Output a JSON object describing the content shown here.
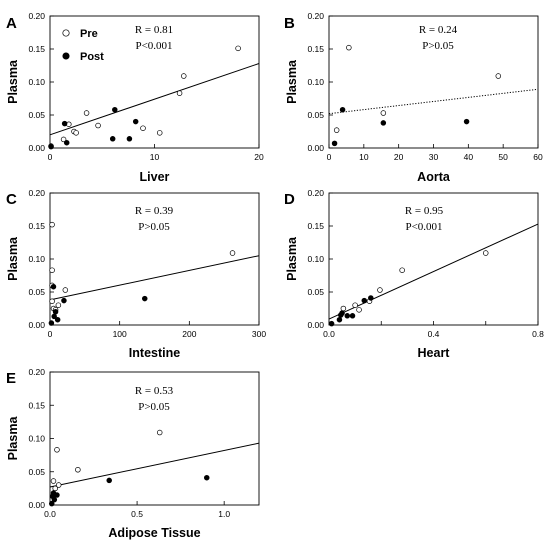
{
  "legend": {
    "panel": "A",
    "entries": [
      {
        "label": "Pre",
        "marker": "open-circle"
      },
      {
        "label": "Post",
        "marker": "filled-circle"
      }
    ]
  },
  "chart_data": [
    {
      "panel": "A",
      "type": "scatter",
      "xlabel": "Liver",
      "ylabel": "Plasma",
      "xlim": [
        0,
        20
      ],
      "ylim": [
        0,
        0.2
      ],
      "xticks": [
        0,
        10,
        20
      ],
      "xtick_labels": [
        "0",
        "10",
        "20"
      ],
      "yticks": [
        0,
        0.05,
        0.1,
        0.15,
        0.2
      ],
      "ytick_labels": [
        "0.00",
        "0.05",
        "0.10",
        "0.15",
        "0.20"
      ],
      "stats": {
        "r": "R = 0.81",
        "p": "P<0.001"
      },
      "fit": {
        "style": "solid",
        "points": [
          [
            0,
            0.02
          ],
          [
            20,
            0.128
          ]
        ]
      },
      "series": [
        {
          "name": "Pre",
          "marker": "open",
          "points": [
            [
              0.1,
              0.003
            ],
            [
              1.3,
              0.013
            ],
            [
              2.3,
              0.025
            ],
            [
              2.5,
              0.023
            ],
            [
              3.5,
              0.053
            ],
            [
              4.6,
              0.034
            ],
            [
              8.9,
              0.03
            ],
            [
              10.5,
              0.023
            ],
            [
              12.4,
              0.083
            ],
            [
              12.8,
              0.109
            ],
            [
              18,
              0.151
            ],
            [
              1.8,
              0.036
            ]
          ]
        },
        {
          "name": "Post",
          "marker": "filled",
          "points": [
            [
              0.1,
              0.002
            ],
            [
              1.4,
              0.037
            ],
            [
              1.6,
              0.008
            ],
            [
              6.0,
              0.014
            ],
            [
              6.2,
              0.058
            ],
            [
              7.6,
              0.014
            ],
            [
              8.2,
              0.04
            ]
          ]
        }
      ]
    },
    {
      "panel": "B",
      "type": "scatter",
      "xlabel": "Aorta",
      "ylabel": "Plasma",
      "xlim": [
        0,
        60
      ],
      "ylim": [
        0,
        0.2
      ],
      "xticks": [
        0,
        10,
        20,
        30,
        40,
        50,
        60
      ],
      "xtick_labels": [
        "0",
        "10",
        "20",
        "30",
        "40",
        "50",
        "60"
      ],
      "yticks": [
        0,
        0.05,
        0.1,
        0.15,
        0.2
      ],
      "ytick_labels": [
        "0.00",
        "0.05",
        "0.10",
        "0.15",
        "0.20"
      ],
      "stats": {
        "r": "R = 0.24",
        "p": "P>0.05"
      },
      "fit": {
        "style": "dotted",
        "points": [
          [
            0,
            0.052
          ],
          [
            60,
            0.089
          ]
        ]
      },
      "series": [
        {
          "name": "Pre",
          "marker": "open",
          "points": [
            [
              2.2,
              0.027
            ],
            [
              5.7,
              0.152
            ],
            [
              15.6,
              0.053
            ],
            [
              48.6,
              0.109
            ]
          ]
        },
        {
          "name": "Post",
          "marker": "filled",
          "points": [
            [
              1.6,
              0.007
            ],
            [
              3.9,
              0.058
            ],
            [
              15.6,
              0.038
            ],
            [
              39.5,
              0.04
            ]
          ]
        }
      ]
    },
    {
      "panel": "C",
      "type": "scatter",
      "xlabel": "Intestine",
      "ylabel": "Plasma",
      "xlim": [
        0,
        300
      ],
      "ylim": [
        0,
        0.2
      ],
      "xticks": [
        0,
        100,
        200,
        300
      ],
      "xtick_labels": [
        "0",
        "100",
        "200",
        "300"
      ],
      "yticks": [
        0,
        0.05,
        0.1,
        0.15,
        0.2
      ],
      "ytick_labels": [
        "0.00",
        "0.05",
        "0.10",
        "0.15",
        "0.20"
      ],
      "stats": {
        "r": "R = 0.39",
        "p": "P>0.05"
      },
      "fit": {
        "style": "solid",
        "points": [
          [
            0,
            0.038
          ],
          [
            300,
            0.105
          ]
        ]
      },
      "series": [
        {
          "name": "Pre",
          "marker": "open",
          "points": [
            [
              3,
              0.152
            ],
            [
              3,
              0.083
            ],
            [
              3,
              0.06
            ],
            [
              3,
              0.036
            ],
            [
              5,
              0.025
            ],
            [
              8,
              0.023
            ],
            [
              12,
              0.03
            ],
            [
              22,
              0.053
            ],
            [
              262,
              0.109
            ]
          ]
        },
        {
          "name": "Post",
          "marker": "filled",
          "points": [
            [
              2,
              0.003
            ],
            [
              5,
              0.058
            ],
            [
              6,
              0.013
            ],
            [
              8,
              0.02
            ],
            [
              11,
              0.008
            ],
            [
              20,
              0.037
            ],
            [
              136,
              0.04
            ]
          ]
        }
      ]
    },
    {
      "panel": "D",
      "type": "scatter",
      "xlabel": "Heart",
      "ylabel": "Plasma",
      "xlim": [
        0,
        0.8
      ],
      "ylim": [
        0,
        0.2
      ],
      "xticks": [
        0,
        0.2,
        0.4,
        0.6,
        0.8
      ],
      "xtick_labels": [
        "0.0",
        "",
        "0.4",
        "",
        "0.8"
      ],
      "yticks": [
        0,
        0.05,
        0.1,
        0.15,
        0.2
      ],
      "ytick_labels": [
        "0.00",
        "0.05",
        "0.10",
        "0.15",
        "0.20"
      ],
      "stats": {
        "r": "R = 0.95",
        "p": "P<0.001"
      },
      "fit": {
        "style": "solid",
        "points": [
          [
            0,
            0.009
          ],
          [
            0.8,
            0.153
          ]
        ]
      },
      "series": [
        {
          "name": "Pre",
          "marker": "open",
          "points": [
            [
              0.055,
              0.025
            ],
            [
              0.1,
              0.03
            ],
            [
              0.115,
              0.023
            ],
            [
              0.155,
              0.036
            ],
            [
              0.195,
              0.053
            ],
            [
              0.28,
              0.083
            ],
            [
              0.6,
              0.109
            ]
          ]
        },
        {
          "name": "Post",
          "marker": "filled",
          "points": [
            [
              0.01,
              0.002
            ],
            [
              0.04,
              0.008
            ],
            [
              0.045,
              0.015
            ],
            [
              0.05,
              0.018
            ],
            [
              0.07,
              0.014
            ],
            [
              0.09,
              0.014
            ],
            [
              0.135,
              0.037
            ],
            [
              0.16,
              0.041
            ]
          ]
        }
      ]
    },
    {
      "panel": "E",
      "type": "scatter",
      "xlabel": "Adipose Tissue",
      "ylabel": "Plasma",
      "xlim": [
        0,
        1.2
      ],
      "ylim": [
        0,
        0.2
      ],
      "xticks": [
        0,
        0.5,
        1.0
      ],
      "xtick_labels": [
        "0.0",
        "0.5",
        "1.0"
      ],
      "yticks": [
        0,
        0.05,
        0.1,
        0.15,
        0.2
      ],
      "ytick_labels": [
        "0.00",
        "0.05",
        "0.10",
        "0.15",
        "0.20"
      ],
      "stats": {
        "r": "R = 0.53",
        "p": "P>0.05"
      },
      "fit": {
        "style": "solid",
        "points": [
          [
            0,
            0.027
          ],
          [
            1.2,
            0.093
          ]
        ]
      },
      "series": [
        {
          "name": "Pre",
          "marker": "open",
          "points": [
            [
              0.02,
              0.036
            ],
            [
              0.03,
              0.025
            ],
            [
              0.05,
              0.03
            ],
            [
              0.04,
              0.083
            ],
            [
              0.16,
              0.053
            ],
            [
              0.63,
              0.109
            ]
          ]
        },
        {
          "name": "Post",
          "marker": "filled",
          "points": [
            [
              0.01,
              0.002
            ],
            [
              0.015,
              0.013
            ],
            [
              0.02,
              0.018
            ],
            [
              0.025,
              0.008
            ],
            [
              0.04,
              0.015
            ],
            [
              0.34,
              0.037
            ],
            [
              0.9,
              0.041
            ]
          ]
        }
      ]
    }
  ]
}
